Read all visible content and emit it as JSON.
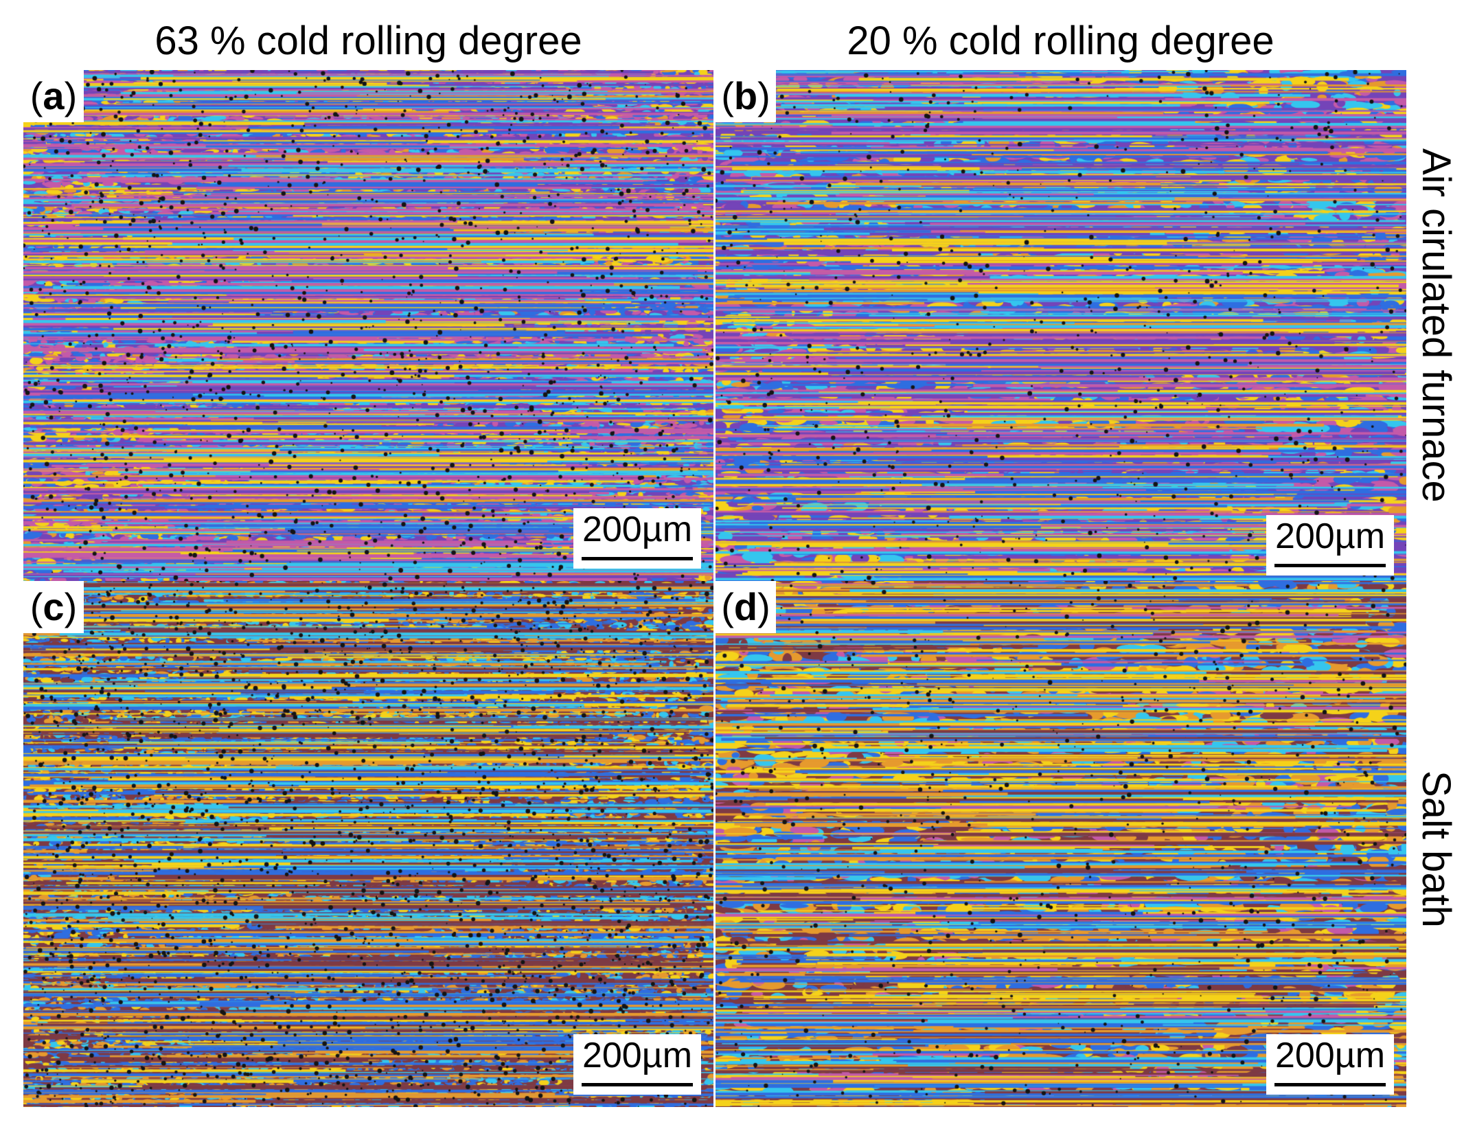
{
  "columns": {
    "left": "63 % cold rolling degree",
    "right": "20 % cold rolling degree"
  },
  "rows": {
    "top": "Air cirulated furnace",
    "bottom": "Salt bath"
  },
  "panels": [
    {
      "letter": "a",
      "scale": "200µm"
    },
    {
      "letter": "b",
      "scale": "200µm"
    },
    {
      "letter": "c",
      "scale": "200µm"
    },
    {
      "letter": "d",
      "scale": "200µm"
    }
  ],
  "colors": {
    "magenta": "#c45aa8",
    "yellow": "#f5d21a",
    "blue": "#2f6ee0",
    "cyan": "#35c6ee",
    "purple": "#7444b8",
    "orange": "#e69a2e",
    "brown": "#7e3a44",
    "dark": "#141414"
  }
}
